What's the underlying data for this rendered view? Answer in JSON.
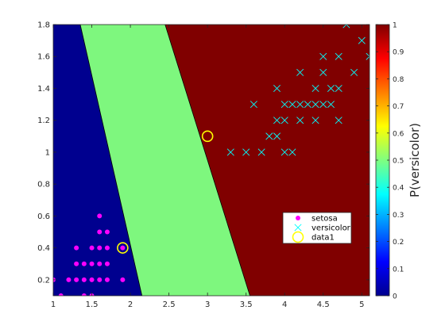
{
  "chart_data": {
    "type": "scatter",
    "xlim": [
      1,
      5.1
    ],
    "ylim": [
      0.1,
      1.8
    ],
    "x_ticks": [
      "1",
      "1.5",
      "2",
      "2.5",
      "3",
      "3.5",
      "4",
      "4.5",
      "5"
    ],
    "x_tick_values": [
      1,
      1.5,
      2,
      2.5,
      3,
      3.5,
      4,
      4.5,
      5
    ],
    "y_ticks": [
      "0.2",
      "0.4",
      "0.6",
      "0.8",
      "1",
      "1.2",
      "1.4",
      "1.6",
      "1.8"
    ],
    "y_tick_values": [
      0.2,
      0.4,
      0.6,
      0.8,
      1.0,
      1.2,
      1.4,
      1.6,
      1.8
    ],
    "background": {
      "description": "predicted probability map",
      "regions": [
        {
          "level": 0.0,
          "color": "#00008f"
        },
        {
          "level": 0.5,
          "color": "#7ef77e"
        },
        {
          "level": 1.0,
          "color": "#800000"
        }
      ],
      "left_boundary": [
        [
          1.35,
          1.8
        ],
        [
          2.15,
          0.1
        ]
      ],
      "right_boundary": [
        [
          2.45,
          1.8
        ],
        [
          3.55,
          0.1
        ]
      ]
    },
    "series": [
      {
        "name": "setosa",
        "marker": "filled-circle",
        "color": "#ff00ff",
        "points": [
          [
            1.0,
            0.2
          ],
          [
            1.1,
            0.1
          ],
          [
            1.2,
            0.2
          ],
          [
            1.3,
            0.2
          ],
          [
            1.4,
            0.2
          ],
          [
            1.5,
            0.2
          ],
          [
            1.6,
            0.2
          ],
          [
            1.7,
            0.2
          ],
          [
            1.9,
            0.2
          ],
          [
            1.4,
            0.1
          ],
          [
            1.5,
            0.1
          ],
          [
            1.3,
            0.3
          ],
          [
            1.4,
            0.3
          ],
          [
            1.5,
            0.3
          ],
          [
            1.6,
            0.3
          ],
          [
            1.7,
            0.3
          ],
          [
            1.3,
            0.4
          ],
          [
            1.5,
            0.4
          ],
          [
            1.6,
            0.4
          ],
          [
            1.7,
            0.4
          ],
          [
            1.9,
            0.4
          ],
          [
            1.6,
            0.5
          ],
          [
            1.7,
            0.5
          ],
          [
            1.6,
            0.6
          ]
        ]
      },
      {
        "name": "versicolor",
        "marker": "x",
        "color": "#00ffff",
        "points": [
          [
            3.3,
            1.0
          ],
          [
            3.5,
            1.0
          ],
          [
            3.7,
            1.0
          ],
          [
            4.0,
            1.0
          ],
          [
            4.1,
            1.0
          ],
          [
            3.8,
            1.1
          ],
          [
            3.9,
            1.1
          ],
          [
            3.9,
            1.2
          ],
          [
            4.0,
            1.2
          ],
          [
            4.2,
            1.2
          ],
          [
            4.4,
            1.2
          ],
          [
            4.7,
            1.2
          ],
          [
            4.0,
            1.3
          ],
          [
            4.1,
            1.3
          ],
          [
            4.2,
            1.3
          ],
          [
            4.3,
            1.3
          ],
          [
            4.4,
            1.3
          ],
          [
            4.5,
            1.3
          ],
          [
            4.6,
            1.3
          ],
          [
            3.6,
            1.3
          ],
          [
            3.9,
            1.4
          ],
          [
            4.4,
            1.4
          ],
          [
            4.6,
            1.4
          ],
          [
            4.7,
            1.4
          ],
          [
            4.2,
            1.5
          ],
          [
            4.5,
            1.5
          ],
          [
            4.9,
            1.5
          ],
          [
            4.5,
            1.6
          ],
          [
            4.7,
            1.6
          ],
          [
            5.1,
            1.6
          ],
          [
            4.8,
            1.8
          ],
          [
            5.0,
            1.7
          ]
        ]
      },
      {
        "name": "data1",
        "marker": "open-circle",
        "color": "#ffff00",
        "points": [
          [
            1.9,
            0.4
          ],
          [
            3.0,
            1.1
          ]
        ]
      }
    ],
    "legend": {
      "placement": "lower-right",
      "entries": [
        "setosa",
        "versicolor",
        "data1"
      ]
    },
    "colorbar": {
      "label": "P(versicolor)",
      "range": [
        0,
        1
      ],
      "ticks": [
        "0",
        "0.1",
        "0.2",
        "0.3",
        "0.4",
        "0.5",
        "0.6",
        "0.7",
        "0.8",
        "0.9",
        "1"
      ],
      "tick_values": [
        0,
        0.1,
        0.2,
        0.3,
        0.4,
        0.5,
        0.6,
        0.7,
        0.8,
        0.9,
        1.0
      ],
      "colormap": "jet"
    }
  }
}
